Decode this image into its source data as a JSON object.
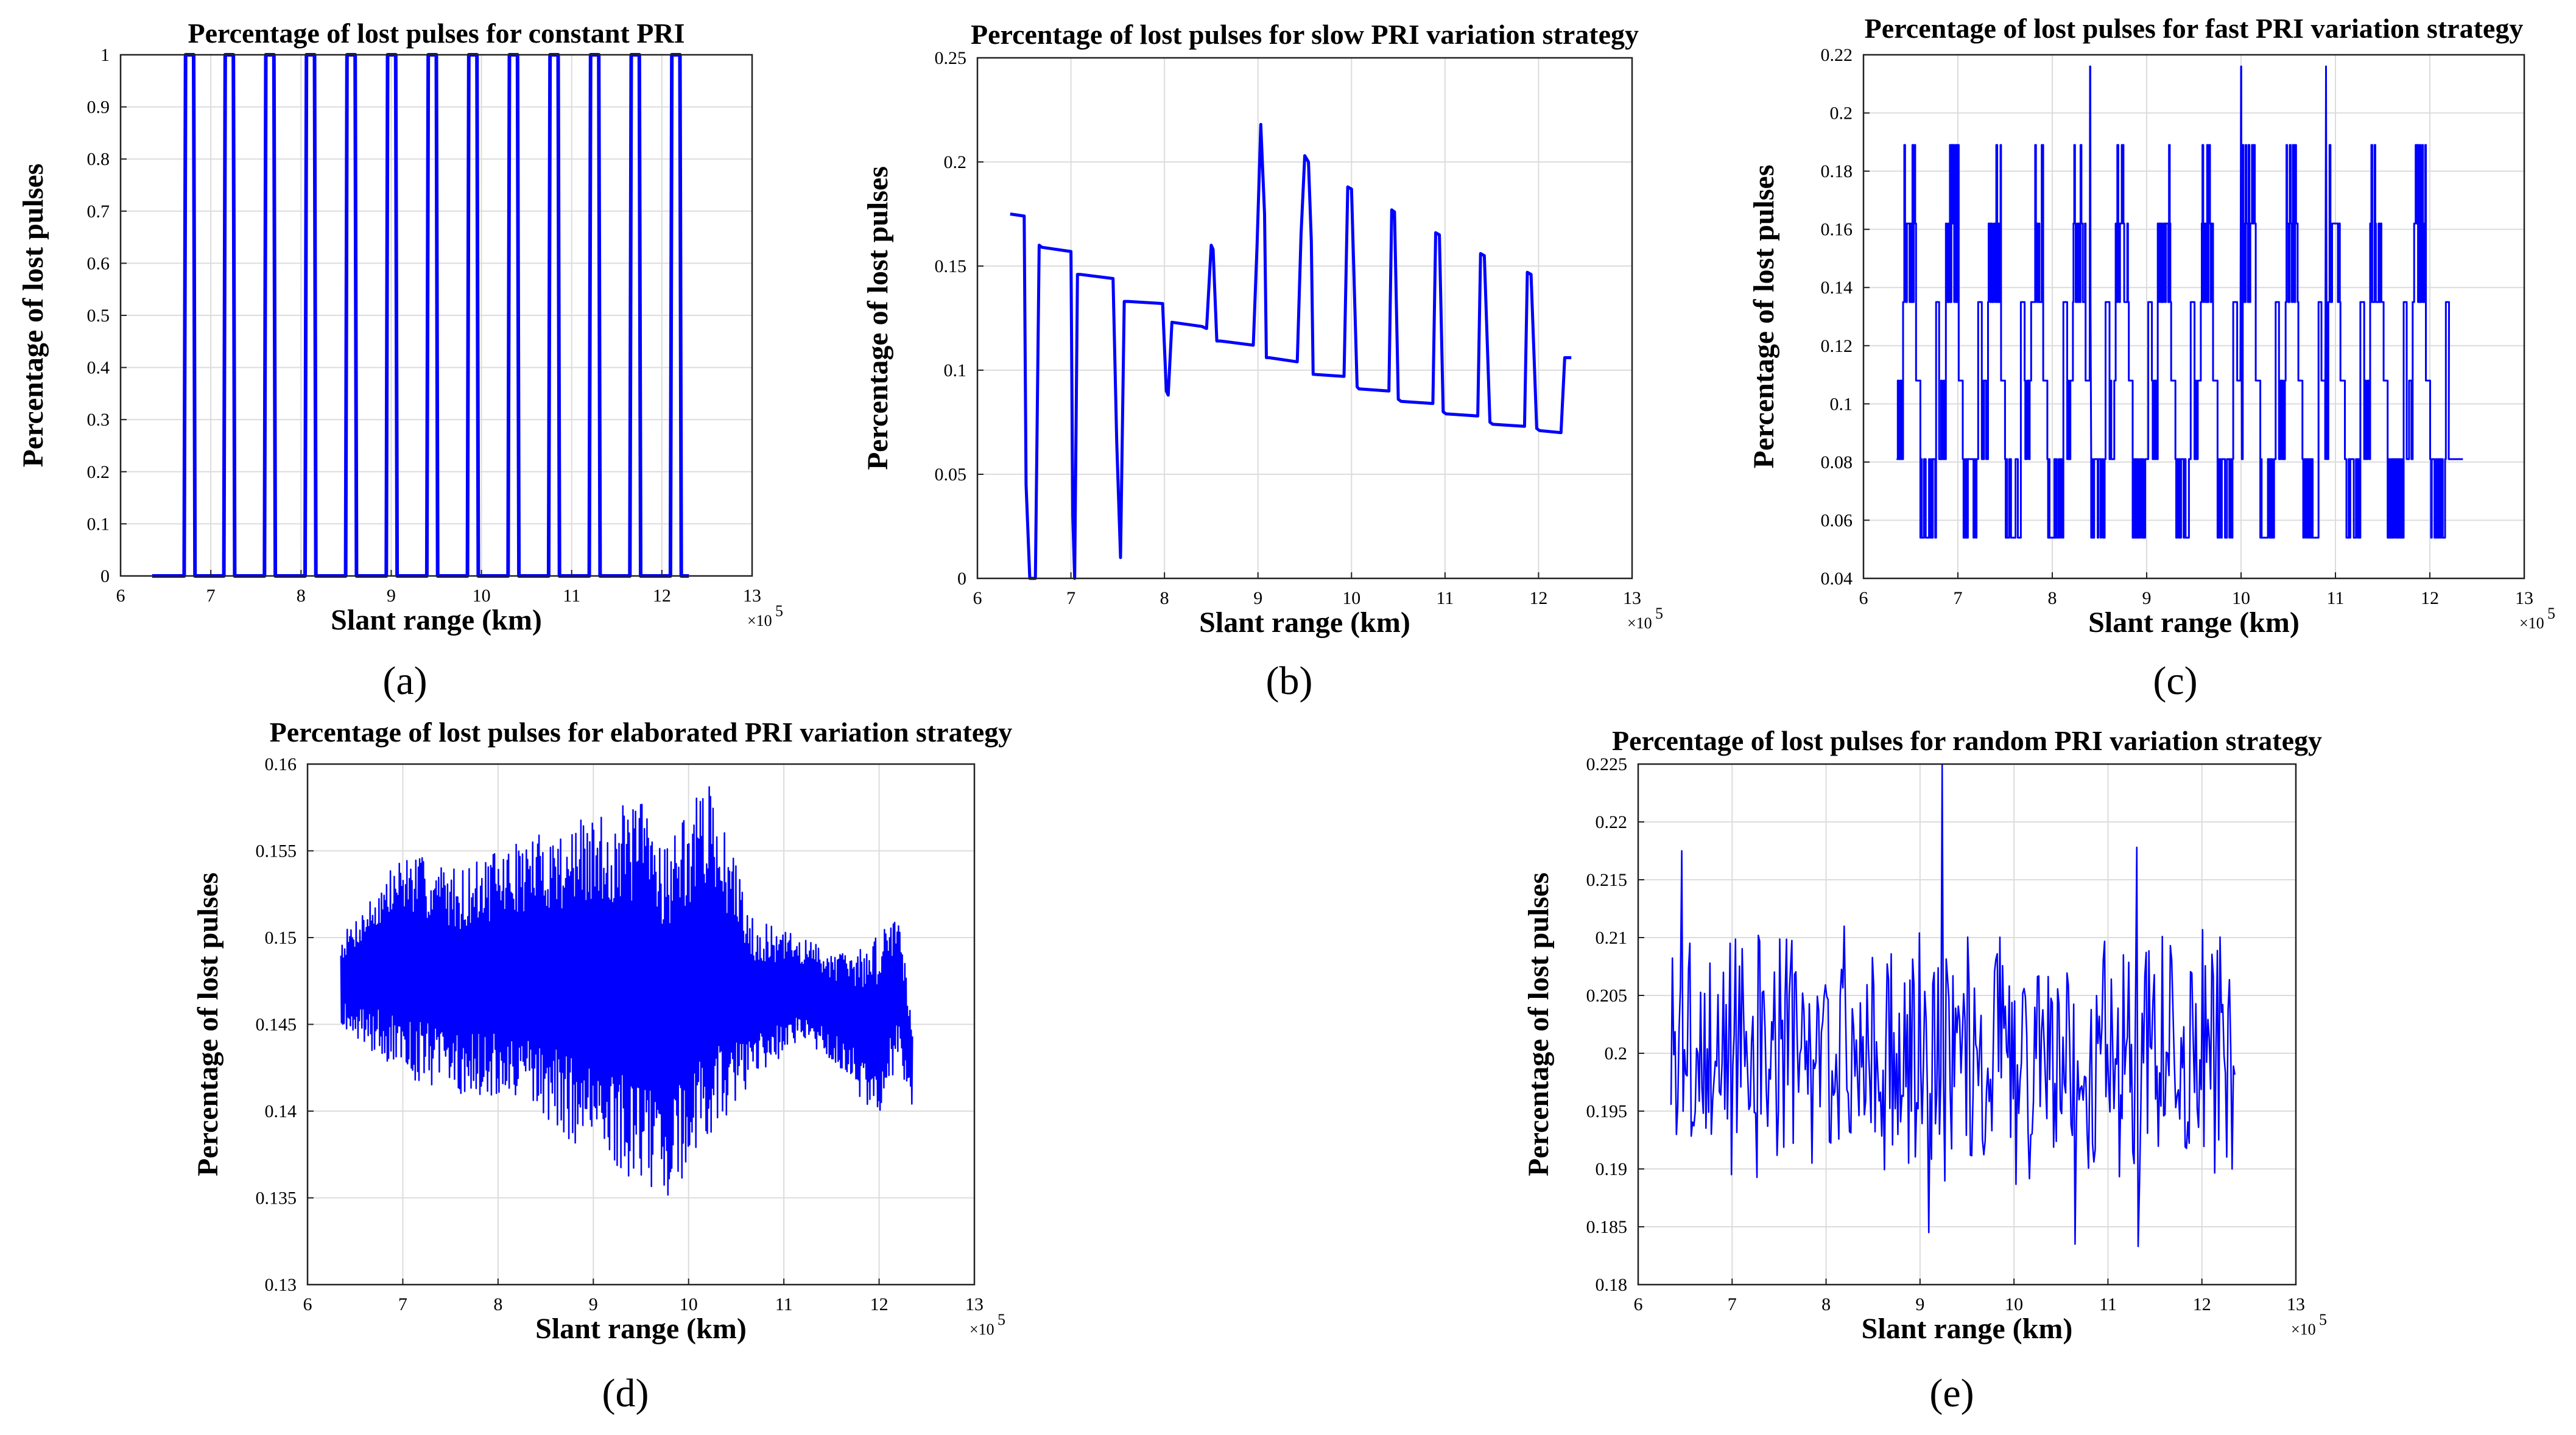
{
  "figure": {
    "captions": [
      "(a)",
      "(b)",
      "(c)",
      "(d)",
      "(e)"
    ]
  },
  "chart_data": [
    {
      "id": "a",
      "type": "line",
      "title": "Percentage of lost pulses for constant PRI",
      "xlabel": "Slant range (km)",
      "ylabel": "Percentage of lost pulses",
      "x_exponent_label": "×10",
      "x_exponent_power": "5",
      "xlim": [
        6,
        13
      ],
      "ylim": [
        0,
        1
      ],
      "xticks": [
        6,
        7,
        8,
        9,
        10,
        11,
        12,
        13
      ],
      "xtick_labels": [
        "6",
        "7",
        "8",
        "9",
        "10",
        "11",
        "12",
        "13"
      ],
      "yticks": [
        0,
        0.1,
        0.2,
        0.3,
        0.4,
        0.5,
        0.6,
        0.7,
        0.8,
        0.9,
        1
      ],
      "ytick_labels": [
        "0",
        "0.1",
        "0.2",
        "0.3",
        "0.4",
        "0.5",
        "0.6",
        "0.7",
        "0.8",
        "0.9",
        "1"
      ],
      "grid": true,
      "color": "#0000ff",
      "stroke_width": 6,
      "generator": "rect",
      "gen": {
        "x0": 6.35,
        "x1": 12.3,
        "base": 0,
        "high": 1,
        "pulses": [
          6.72,
          7.16,
          7.61,
          8.06,
          8.51,
          8.96,
          9.41,
          9.86,
          10.31,
          10.76,
          11.21,
          11.66,
          12.11
        ],
        "width": 0.09
      }
    },
    {
      "id": "b",
      "type": "line",
      "title": "Percentage of lost pulses for slow PRI variation strategy",
      "xlabel": "Slant range (km)",
      "ylabel": "Percentage of lost pulses",
      "x_exponent_label": "×10",
      "x_exponent_power": "5",
      "xlim": [
        6,
        13
      ],
      "ylim": [
        0,
        0.25
      ],
      "xticks": [
        6,
        7,
        8,
        9,
        10,
        11,
        12,
        13
      ],
      "xtick_labels": [
        "6",
        "7",
        "8",
        "9",
        "10",
        "11",
        "12",
        "13"
      ],
      "yticks": [
        0,
        0.05,
        0.1,
        0.15,
        0.2,
        0.25
      ],
      "ytick_labels": [
        "0",
        "0.05",
        "0.1",
        "0.15",
        "0.2",
        "0.25"
      ],
      "grid": true,
      "color": "#0000ff",
      "stroke_width": 5,
      "generator": "points",
      "x": [
        6.35,
        6.5,
        6.52,
        6.56,
        6.62,
        6.66,
        6.69,
        7.0,
        7.02,
        7.04,
        7.07,
        7.1,
        7.45,
        7.49,
        7.53,
        7.57,
        7.61,
        7.98,
        8.02,
        8.04,
        8.08,
        8.4,
        8.45,
        8.5,
        8.52,
        8.56,
        8.6,
        8.95,
        8.99,
        9.03,
        9.07,
        9.09,
        9.12,
        9.42,
        9.46,
        9.5,
        9.54,
        9.57,
        9.59,
        9.92,
        9.96,
        10.0,
        10.06,
        10.08,
        10.4,
        10.43,
        10.46,
        10.5,
        10.53,
        10.87,
        10.9,
        10.94,
        10.98,
        11.01,
        11.35,
        11.38,
        11.42,
        11.48,
        11.51,
        11.85,
        11.88,
        11.92,
        11.98,
        12.01,
        12.24,
        12.28,
        12.32,
        12.35
      ],
      "y": [
        0.175,
        0.174,
        0.045,
        0.0,
        0.0,
        0.16,
        0.159,
        0.157,
        0.03,
        0.0,
        0.146,
        0.146,
        0.144,
        0.065,
        0.01,
        0.133,
        0.133,
        0.132,
        0.09,
        0.088,
        0.123,
        0.121,
        0.12,
        0.16,
        0.158,
        0.114,
        0.114,
        0.112,
        0.16,
        0.218,
        0.175,
        0.106,
        0.106,
        0.104,
        0.165,
        0.203,
        0.2,
        0.162,
        0.098,
        0.097,
        0.188,
        0.187,
        0.092,
        0.091,
        0.09,
        0.177,
        0.176,
        0.086,
        0.085,
        0.084,
        0.166,
        0.165,
        0.08,
        0.079,
        0.078,
        0.156,
        0.155,
        0.075,
        0.074,
        0.073,
        0.147,
        0.146,
        0.072,
        0.071,
        0.07,
        0.106,
        0.106,
        0.106
      ]
    },
    {
      "id": "c",
      "type": "line",
      "title": "Percentage of lost pulses for fast PRI variation strategy",
      "xlabel": "Slant range (km)",
      "ylabel": "Percentage of lost pulses",
      "x_exponent_label": "×10",
      "x_exponent_power": "5",
      "xlim": [
        6,
        13
      ],
      "ylim": [
        0.04,
        0.22
      ],
      "xticks": [
        6,
        7,
        8,
        9,
        10,
        11,
        12,
        13
      ],
      "xtick_labels": [
        "6",
        "7",
        "8",
        "9",
        "10",
        "11",
        "12",
        "13"
      ],
      "yticks": [
        0.04,
        0.06,
        0.08,
        0.1,
        0.12,
        0.14,
        0.16,
        0.18,
        0.2,
        0.22
      ],
      "ytick_labels": [
        "0.04",
        "0.06",
        "0.08",
        "0.1",
        "0.12",
        "0.14",
        "0.16",
        "0.18",
        "0.2",
        "0.22"
      ],
      "grid": true,
      "color": "#0000ff",
      "stroke_width": 3,
      "generator": "periodic",
      "gen": {
        "x0": 6.35,
        "x1": 12.2,
        "period": 0.45,
        "levels": [
          0.054,
          0.081,
          0.108,
          0.135,
          0.162,
          0.189
        ],
        "spikes": [
          [
            8.4,
            0.216
          ],
          [
            10.0,
            0.216
          ],
          [
            10.9,
            0.216
          ]
        ],
        "tail": [
          [
            12.2,
            0.081
          ],
          [
            12.35,
            0.081
          ]
        ],
        "seed": 11
      }
    },
    {
      "id": "d",
      "type": "line",
      "title": "Percentage of lost pulses for elaborated PRI variation strategy",
      "xlabel": "Slant range (km)",
      "ylabel": "Percentage of lost pulses",
      "x_exponent_label": "×10",
      "x_exponent_power": "5",
      "xlim": [
        6,
        13
      ],
      "ylim": [
        0.13,
        0.16
      ],
      "xticks": [
        6,
        7,
        8,
        9,
        10,
        11,
        12,
        13
      ],
      "xtick_labels": [
        "6",
        "7",
        "8",
        "9",
        "10",
        "11",
        "12",
        "13"
      ],
      "yticks": [
        0.13,
        0.135,
        0.14,
        0.145,
        0.15,
        0.155,
        0.16
      ],
      "ytick_labels": [
        "0.13",
        "0.135",
        "0.14",
        "0.145",
        "0.15",
        "0.155",
        "0.16"
      ],
      "grid": true,
      "color": "#0000ff",
      "stroke_width": 2.5,
      "generator": "envelope",
      "gen": {
        "x0": 6.35,
        "x1": 12.35,
        "n": 900,
        "env_x": [
          6.35,
          7.0,
          7.6,
          8.4,
          9.0,
          9.5,
          9.8,
          10.2,
          10.7,
          11.2,
          11.7,
          11.95,
          12.2,
          12.35
        ],
        "env_lo": [
          0.145,
          0.142,
          0.141,
          0.14,
          0.137,
          0.136,
          0.135,
          0.138,
          0.142,
          0.144,
          0.142,
          0.139,
          0.143,
          0.14
        ],
        "env_hi": [
          0.15,
          0.155,
          0.154,
          0.156,
          0.157,
          0.158,
          0.156,
          0.159,
          0.151,
          0.15,
          0.149,
          0.15,
          0.152,
          0.145
        ],
        "seed": 7
      }
    },
    {
      "id": "e",
      "type": "line",
      "title": "Percentage of lost pulses for random PRI variation strategy",
      "xlabel": "Slant range (km)",
      "ylabel": "Percentage of lost pulses",
      "x_exponent_label": "×10",
      "x_exponent_power": "5",
      "xlim": [
        6,
        13
      ],
      "ylim": [
        0.18,
        0.225
      ],
      "xticks": [
        6,
        7,
        8,
        9,
        10,
        11,
        12,
        13
      ],
      "xtick_labels": [
        "6",
        "7",
        "8",
        "9",
        "10",
        "11",
        "12",
        "13"
      ],
      "yticks": [
        0.18,
        0.185,
        0.19,
        0.195,
        0.2,
        0.205,
        0.21,
        0.215,
        0.22,
        0.225
      ],
      "ytick_labels": [
        "0.18",
        "0.185",
        "0.19",
        "0.195",
        "0.2",
        "0.205",
        "0.21",
        "0.215",
        "0.22",
        "0.225"
      ],
      "grid": true,
      "color": "#0000ff",
      "stroke_width": 2.5,
      "generator": "noise",
      "gen": {
        "x0": 6.35,
        "x1": 12.35,
        "n": 420,
        "mean": 0.2,
        "amp": 0.009,
        "lo": 0.1835,
        "hi": 0.225,
        "seed": 3,
        "spikes": [
          [
            9.23,
            0.225
          ],
          [
            6.47,
            0.2175
          ],
          [
            11.3,
            0.2178
          ],
          [
            10.65,
            0.1835
          ],
          [
            11.32,
            0.1833
          ],
          [
            9.1,
            0.1845
          ]
        ]
      }
    }
  ]
}
